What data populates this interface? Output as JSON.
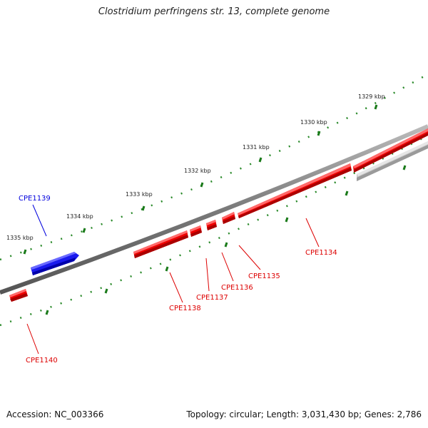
{
  "title": "Clostridium perfringens str. 13, complete genome",
  "footer": {
    "accession": "Accession: NC_003366",
    "topology": "Topology: circular; Length: 3,031,430 bp; Genes: 2,786"
  },
  "colors": {
    "backbone": "#7a7a7a",
    "tick": "#1a7a1a",
    "forward_gene": "#ee0000",
    "reverse_gene": "#1a1aee",
    "other_feature": "#bdbdbd"
  },
  "ruler": {
    "labels": [
      "1329 kbp",
      "1330 kbp",
      "1331 kbp",
      "1332 kbp",
      "1333 kbp",
      "1334 kbp",
      "1335 kbp"
    ]
  },
  "genes": [
    {
      "label": "CPE1134",
      "strand": "forward",
      "color": "#dd0000"
    },
    {
      "label": "CPE1135",
      "strand": "forward",
      "color": "#dd0000"
    },
    {
      "label": "CPE1136",
      "strand": "forward",
      "color": "#dd0000"
    },
    {
      "label": "CPE1137",
      "strand": "forward",
      "color": "#dd0000"
    },
    {
      "label": "CPE1138",
      "strand": "forward",
      "color": "#dd0000"
    },
    {
      "label": "CPE1139",
      "strand": "reverse",
      "color": "#0000dd"
    },
    {
      "label": "CPE1140",
      "strand": "forward",
      "color": "#dd0000"
    }
  ]
}
